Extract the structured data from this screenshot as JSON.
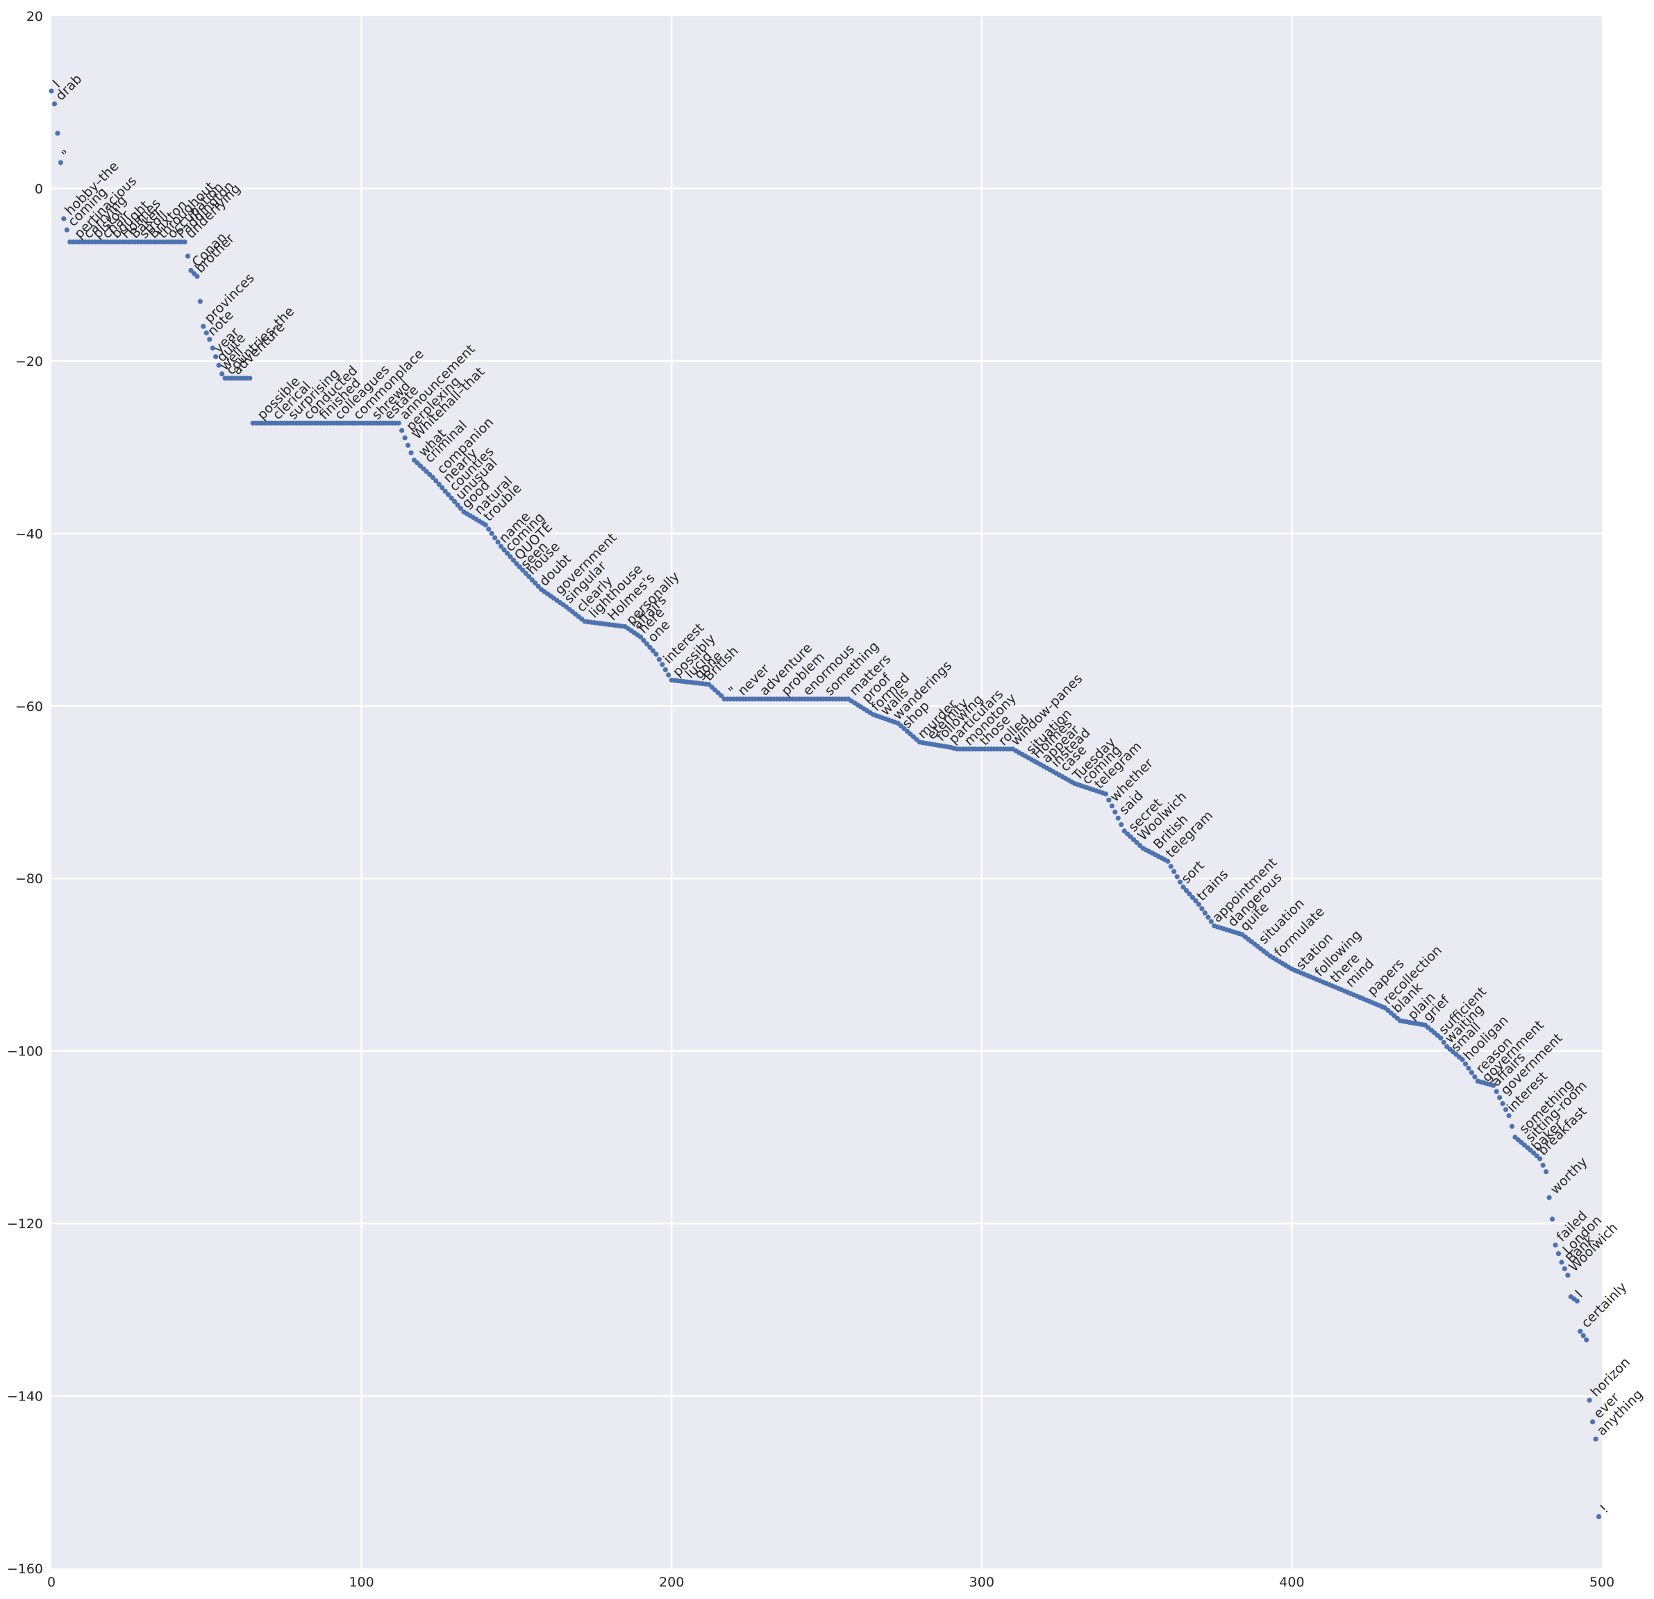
{
  "chart_data": {
    "type": "scatter",
    "title": "",
    "xlabel": "",
    "ylabel": "",
    "xlim": [
      0,
      500
    ],
    "ylim": [
      -160,
      20
    ],
    "grid": true,
    "legend": "none",
    "xticks": [
      "0",
      "100",
      "200",
      "300",
      "400",
      "500"
    ],
    "yticks": [
      "20",
      "0",
      "−20",
      "−40",
      "−60",
      "−80",
      "−100",
      "−120",
      "−140",
      "−160"
    ],
    "colors": {
      "background": "#eaeaf2",
      "grid": "#ffffff",
      "marker": "#4c72b0",
      "text": "#262626"
    },
    "series": [
      {
        "y_profile": [
          [
            0,
            11.3
          ],
          [
            1,
            9.8
          ],
          [
            3,
            3
          ],
          [
            4,
            -3.5
          ],
          [
            5,
            -4.8
          ],
          [
            6,
            -6.2
          ],
          [
            43,
            -6.2
          ],
          [
            45,
            -9.5
          ],
          [
            47,
            -10.2
          ],
          [
            49,
            -16
          ],
          [
            51,
            -17.5
          ],
          [
            53,
            -19.5
          ],
          [
            55,
            -21.5
          ],
          [
            56,
            -22
          ],
          [
            64,
            -22
          ],
          [
            65,
            -27.2
          ],
          [
            112,
            -27.2
          ],
          [
            117,
            -31.5
          ],
          [
            123,
            -33.5
          ],
          [
            128,
            -35.5
          ],
          [
            133,
            -37.5
          ],
          [
            140,
            -39
          ],
          [
            145,
            -41.5
          ],
          [
            150,
            -43.5
          ],
          [
            158,
            -46.5
          ],
          [
            166,
            -48.5
          ],
          [
            172,
            -50.2
          ],
          [
            185,
            -50.8
          ],
          [
            190,
            -52
          ],
          [
            195,
            -54
          ],
          [
            200,
            -57
          ],
          [
            212,
            -57.5
          ],
          [
            216,
            -58.8
          ],
          [
            217,
            -59.2
          ],
          [
            257,
            -59.2
          ],
          [
            265,
            -61
          ],
          [
            273,
            -62
          ],
          [
            280,
            -64.2
          ],
          [
            290,
            -64.8
          ],
          [
            292,
            -65
          ],
          [
            310,
            -65
          ],
          [
            315,
            -66
          ],
          [
            320,
            -67
          ],
          [
            330,
            -69
          ],
          [
            340,
            -70.2
          ],
          [
            344,
            -73
          ],
          [
            346,
            -74.5
          ],
          [
            352,
            -76.5
          ],
          [
            360,
            -78
          ],
          [
            365,
            -81
          ],
          [
            370,
            -83
          ],
          [
            375,
            -85.5
          ],
          [
            384,
            -86.5
          ],
          [
            393,
            -89
          ],
          [
            400,
            -90.5
          ],
          [
            410,
            -92
          ],
          [
            420,
            -93.5
          ],
          [
            430,
            -95
          ],
          [
            435,
            -96.5
          ],
          [
            443,
            -97
          ],
          [
            448,
            -98.5
          ],
          [
            450,
            -99.5
          ],
          [
            455,
            -101
          ],
          [
            460,
            -103.5
          ],
          [
            465,
            -104
          ],
          [
            470,
            -107.5
          ],
          [
            472,
            -110
          ],
          [
            477,
            -111.5
          ],
          [
            480,
            -112.5
          ],
          [
            482,
            -114
          ],
          [
            483,
            -117
          ],
          [
            484,
            -119.5
          ],
          [
            485,
            -122.5
          ],
          [
            487,
            -124.5
          ],
          [
            489,
            -126
          ],
          [
            490,
            -128.5
          ],
          [
            492,
            -129
          ],
          [
            493,
            -132.5
          ],
          [
            495,
            -133.5
          ],
          [
            496,
            -140.5
          ],
          [
            497,
            -143
          ],
          [
            498,
            -145
          ],
          [
            499,
            -154
          ]
        ],
        "labels": [
          {
            "x": 1,
            "y": 11.3,
            "text": "I"
          },
          {
            "x": 2,
            "y": 9.8,
            "text": "drab"
          },
          {
            "x": 4,
            "y": 3,
            "text": "\""
          },
          {
            "x": 5,
            "y": -3.5,
            "text": "hobby–the"
          },
          {
            "x": 6,
            "y": -4.8,
            "text": "coming"
          },
          {
            "x": 8,
            "y": -6.2,
            "text": "pertinacious"
          },
          {
            "x": 11,
            "y": -6.2,
            "text": "carrying"
          },
          {
            "x": 14,
            "y": -6.2,
            "text": "pistol"
          },
          {
            "x": 17,
            "y": -6.2,
            "text": "chair"
          },
          {
            "x": 20,
            "y": -6.2,
            "text": "bought"
          },
          {
            "x": 23,
            "y": -6.2,
            "text": "Holmes"
          },
          {
            "x": 26,
            "y": -6.2,
            "text": "Baker"
          },
          {
            "x": 29,
            "y": -6.2,
            "text": "stroll"
          },
          {
            "x": 32,
            "y": -6.2,
            "text": "Brixton"
          },
          {
            "x": 35,
            "y": -6.2,
            "text": "throughout"
          },
          {
            "x": 38,
            "y": -6.2,
            "text": "occupation"
          },
          {
            "x": 41,
            "y": -6.2,
            "text": "Paddington"
          },
          {
            "x": 44,
            "y": -6.2,
            "text": "underlying"
          },
          {
            "x": 46,
            "y": -9.5,
            "text": "Conan"
          },
          {
            "x": 47,
            "y": -10.2,
            "text": "brother"
          },
          {
            "x": 50,
            "y": -16,
            "text": "provinces"
          },
          {
            "x": 51,
            "y": -17.5,
            "text": "note"
          },
          {
            "x": 53,
            "y": -19.5,
            "text": "year"
          },
          {
            "x": 54,
            "y": -20.5,
            "text": "quite"
          },
          {
            "x": 55,
            "y": -21.5,
            "text": "well"
          },
          {
            "x": 57,
            "y": -22,
            "text": "countries–the"
          },
          {
            "x": 59,
            "y": -22,
            "text": "adventure"
          },
          {
            "x": 67,
            "y": -27.2,
            "text": "possible"
          },
          {
            "x": 72,
            "y": -27.2,
            "text": "clerical"
          },
          {
            "x": 77,
            "y": -27.2,
            "text": "surprising"
          },
          {
            "x": 82,
            "y": -27.2,
            "text": "conducted"
          },
          {
            "x": 87,
            "y": -27.2,
            "text": "finished"
          },
          {
            "x": 92,
            "y": -27.2,
            "text": "colleagues"
          },
          {
            "x": 98,
            "y": -27.2,
            "text": "commonplace"
          },
          {
            "x": 104,
            "y": -27.2,
            "text": "shrewd"
          },
          {
            "x": 108,
            "y": -27.2,
            "text": "estate"
          },
          {
            "x": 113,
            "y": -27.2,
            "text": "announcement"
          },
          {
            "x": 115,
            "y": -28.5,
            "text": "perplexing"
          },
          {
            "x": 117,
            "y": -29.5,
            "text": "Whitehall–that"
          },
          {
            "x": 119,
            "y": -31.5,
            "text": "what"
          },
          {
            "x": 121,
            "y": -32.2,
            "text": "criminal"
          },
          {
            "x": 125,
            "y": -33.5,
            "text": "companion"
          },
          {
            "x": 127,
            "y": -34.5,
            "text": "nearly"
          },
          {
            "x": 129,
            "y": -35.5,
            "text": "counties"
          },
          {
            "x": 131,
            "y": -36.5,
            "text": "unusual"
          },
          {
            "x": 133,
            "y": -37.5,
            "text": "good"
          },
          {
            "x": 137,
            "y": -38.2,
            "text": "natural"
          },
          {
            "x": 140,
            "y": -39,
            "text": "trouble"
          },
          {
            "x": 145,
            "y": -41.5,
            "text": "name"
          },
          {
            "x": 147,
            "y": -42.5,
            "text": "coming"
          },
          {
            "x": 150,
            "y": -43.5,
            "text": "QUOTE"
          },
          {
            "x": 152,
            "y": -44.5,
            "text": "seen"
          },
          {
            "x": 154,
            "y": -45.2,
            "text": "house"
          },
          {
            "x": 158,
            "y": -46.5,
            "text": "doubt"
          },
          {
            "x": 163,
            "y": -47.5,
            "text": "government"
          },
          {
            "x": 166,
            "y": -48.5,
            "text": "singular"
          },
          {
            "x": 170,
            "y": -49.5,
            "text": "clearly"
          },
          {
            "x": 174,
            "y": -50.2,
            "text": "lighthouse"
          },
          {
            "x": 180,
            "y": -50.5,
            "text": "Holmes's"
          },
          {
            "x": 186,
            "y": -51,
            "text": "personally"
          },
          {
            "x": 188,
            "y": -51.5,
            "text": "affairs"
          },
          {
            "x": 190,
            "y": -52,
            "text": "here"
          },
          {
            "x": 193,
            "y": -53,
            "text": "one"
          },
          {
            "x": 198,
            "y": -55.5,
            "text": "interest"
          },
          {
            "x": 201,
            "y": -57,
            "text": "possibly"
          },
          {
            "x": 205,
            "y": -57.2,
            "text": "lucid"
          },
          {
            "x": 208,
            "y": -57.3,
            "text": "gone"
          },
          {
            "x": 211,
            "y": -57.5,
            "text": "British"
          },
          {
            "x": 219,
            "y": -59.2,
            "text": "\""
          },
          {
            "x": 222,
            "y": -59.2,
            "text": "never"
          },
          {
            "x": 229,
            "y": -59.2,
            "text": "adventure"
          },
          {
            "x": 236,
            "y": -59.2,
            "text": "problem"
          },
          {
            "x": 243,
            "y": -59.2,
            "text": "enormous"
          },
          {
            "x": 250,
            "y": -59.2,
            "text": "something"
          },
          {
            "x": 258,
            "y": -59.2,
            "text": "matters"
          },
          {
            "x": 262,
            "y": -60,
            "text": "proof"
          },
          {
            "x": 265,
            "y": -61,
            "text": "formed"
          },
          {
            "x": 268,
            "y": -61.5,
            "text": "walls"
          },
          {
            "x": 272,
            "y": -62,
            "text": "wanderings"
          },
          {
            "x": 275,
            "y": -63,
            "text": "shop"
          },
          {
            "x": 280,
            "y": -64.2,
            "text": "murder"
          },
          {
            "x": 283,
            "y": -64.3,
            "text": "eternity"
          },
          {
            "x": 286,
            "y": -64.5,
            "text": "following"
          },
          {
            "x": 290,
            "y": -64.8,
            "text": "particulars"
          },
          {
            "x": 295,
            "y": -65,
            "text": "monotony"
          },
          {
            "x": 300,
            "y": -65,
            "text": "those"
          },
          {
            "x": 306,
            "y": -65,
            "text": "rolled"
          },
          {
            "x": 310,
            "y": -65,
            "text": "window-panes"
          },
          {
            "x": 315,
            "y": -66,
            "text": "situation"
          },
          {
            "x": 317,
            "y": -66.5,
            "text": "Holmes"
          },
          {
            "x": 320,
            "y": -67,
            "text": "appear"
          },
          {
            "x": 323,
            "y": -67.5,
            "text": "instead"
          },
          {
            "x": 326,
            "y": -68,
            "text": "case"
          },
          {
            "x": 330,
            "y": -69,
            "text": "Tuesday"
          },
          {
            "x": 333,
            "y": -69.5,
            "text": "coming"
          },
          {
            "x": 337,
            "y": -70,
            "text": "telegram"
          },
          {
            "x": 342,
            "y": -71.5,
            "text": "whether"
          },
          {
            "x": 345,
            "y": -73,
            "text": "said"
          },
          {
            "x": 348,
            "y": -75,
            "text": "secret"
          },
          {
            "x": 351,
            "y": -76,
            "text": "Woolwich"
          },
          {
            "x": 356,
            "y": -77,
            "text": "British"
          },
          {
            "x": 360,
            "y": -78,
            "text": "telegram"
          },
          {
            "x": 365,
            "y": -81,
            "text": "sort"
          },
          {
            "x": 370,
            "y": -83,
            "text": "trains"
          },
          {
            "x": 375,
            "y": -85.5,
            "text": "appointment"
          },
          {
            "x": 380,
            "y": -86,
            "text": "dangerous"
          },
          {
            "x": 384,
            "y": -86.5,
            "text": "quite"
          },
          {
            "x": 390,
            "y": -88,
            "text": "situation"
          },
          {
            "x": 395,
            "y": -89.5,
            "text": "formulate"
          },
          {
            "x": 402,
            "y": -91,
            "text": "station"
          },
          {
            "x": 408,
            "y": -91.8,
            "text": "following"
          },
          {
            "x": 413,
            "y": -92.5,
            "text": "there"
          },
          {
            "x": 418,
            "y": -93,
            "text": "mind"
          },
          {
            "x": 425,
            "y": -94,
            "text": "papers"
          },
          {
            "x": 430,
            "y": -95,
            "text": "recollection"
          },
          {
            "x": 433,
            "y": -96,
            "text": "blank"
          },
          {
            "x": 438,
            "y": -96.8,
            "text": "plain"
          },
          {
            "x": 443,
            "y": -97,
            "text": "grief"
          },
          {
            "x": 448,
            "y": -98.5,
            "text": "sufficient"
          },
          {
            "x": 450,
            "y": -99.5,
            "text": "waiting"
          },
          {
            "x": 452,
            "y": -100.5,
            "text": "small"
          },
          {
            "x": 456,
            "y": -101.5,
            "text": "hooligan"
          },
          {
            "x": 460,
            "y": -103,
            "text": "reason"
          },
          {
            "x": 462,
            "y": -104,
            "text": "government"
          },
          {
            "x": 465,
            "y": -104.5,
            "text": "affairs"
          },
          {
            "x": 468,
            "y": -105.5,
            "text": "government"
          },
          {
            "x": 470,
            "y": -107.5,
            "text": "interest"
          },
          {
            "x": 474,
            "y": -110,
            "text": "something"
          },
          {
            "x": 476,
            "y": -111,
            "text": "sitting-room"
          },
          {
            "x": 478,
            "y": -112,
            "text": "baker"
          },
          {
            "x": 480,
            "y": -112.5,
            "text": "breakfast"
          },
          {
            "x": 484,
            "y": -117,
            "text": "worthy"
          },
          {
            "x": 486,
            "y": -122.5,
            "text": "failed"
          },
          {
            "x": 488,
            "y": -124,
            "text": "London"
          },
          {
            "x": 489,
            "y": -125,
            "text": "Bank"
          },
          {
            "x": 490,
            "y": -126,
            "text": "Woolwich"
          },
          {
            "x": 492,
            "y": -129,
            "text": "I"
          },
          {
            "x": 494,
            "y": -132.5,
            "text": "certainly"
          },
          {
            "x": 497,
            "y": -140.5,
            "text": "horizon"
          },
          {
            "x": 498,
            "y": -143,
            "text": "ever"
          },
          {
            "x": 499,
            "y": -145,
            "text": "anything"
          },
          {
            "x": 500,
            "y": -154,
            "text": "!"
          }
        ]
      }
    ]
  }
}
